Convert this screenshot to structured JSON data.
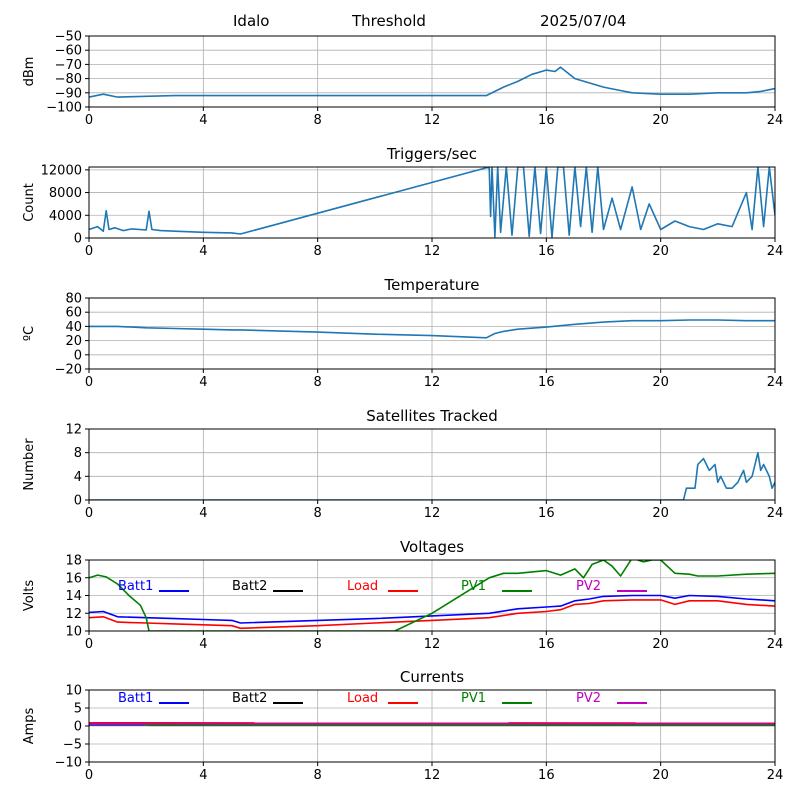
{
  "header": {
    "station": "Idalo",
    "mode": "Threshold",
    "date": "2025/07/04"
  },
  "x_ticks": [
    0,
    4,
    8,
    12,
    16,
    20,
    24
  ],
  "chart_data": [
    {
      "id": "threshold",
      "type": "line",
      "title": "",
      "ylabel": "dBm",
      "xlim": [
        0,
        24
      ],
      "ylim": [
        -100,
        -50
      ],
      "yticks": [
        -100,
        -90,
        -80,
        -70,
        -60,
        -50
      ],
      "yticks_text": [
        "−100",
        "−90",
        "−80",
        "−70",
        "−60",
        "−50"
      ],
      "grid": true,
      "series": [
        {
          "color": "#1f77b4",
          "x": [
            0,
            0.5,
            1,
            2,
            3,
            5,
            6,
            8,
            10,
            13.9,
            14.2,
            14.5,
            15,
            15.5,
            16,
            16.3,
            16.5,
            17,
            17.5,
            18,
            18.5,
            19,
            20,
            21,
            22,
            23,
            23.5,
            24
          ],
          "y": [
            -93,
            -91,
            -93,
            -92.5,
            -92,
            -92,
            -92,
            -92,
            -92,
            -92,
            -89,
            -86,
            -82,
            -77,
            -74,
            -75,
            -72,
            -80,
            -83,
            -86,
            -88,
            -90,
            -91,
            -91,
            -90,
            -90,
            -89,
            -87
          ]
        }
      ]
    },
    {
      "id": "triggers",
      "type": "line",
      "title": "Triggers/sec",
      "ylabel": "Count",
      "xlim": [
        0,
        24
      ],
      "ylim": [
        0,
        12500
      ],
      "yticks": [
        0,
        4000,
        8000,
        12000
      ],
      "yticks_text": [
        "0",
        "4000",
        "8000",
        "12000"
      ],
      "grid": true,
      "series": [
        {
          "color": "#1f77b4",
          "x": [
            0,
            0.3,
            0.5,
            0.6,
            0.7,
            0.9,
            1.2,
            1.5,
            2.0,
            2.1,
            2.2,
            2.5,
            3,
            4,
            5,
            5.3,
            14,
            14.05,
            14.1,
            14.2,
            14.3,
            14.4,
            14.6,
            14.8,
            15,
            15.2,
            15.4,
            15.6,
            15.8,
            16,
            16.2,
            16.4,
            16.6,
            16.8,
            17,
            17.2,
            17.4,
            17.6,
            17.8,
            18,
            18.3,
            18.6,
            19,
            19.3,
            19.6,
            20,
            20.5,
            21,
            21.5,
            22,
            22.5,
            23,
            23.2,
            23.4,
            23.6,
            23.8,
            24
          ],
          "y": [
            1500,
            2000,
            1200,
            4800,
            1500,
            1800,
            1300,
            1600,
            1400,
            4700,
            1500,
            1300,
            1200,
            1000,
            900,
            700,
            12500,
            3800,
            12500,
            200,
            12500,
            1000,
            12500,
            500,
            12500,
            12500,
            300,
            12500,
            800,
            12500,
            100,
            12500,
            12500,
            500,
            12500,
            2000,
            12500,
            1000,
            12500,
            1500,
            7000,
            1500,
            9000,
            1500,
            6000,
            1500,
            3000,
            2000,
            1500,
            2500,
            2000,
            8000,
            1500,
            12500,
            2000,
            12500,
            4000
          ]
        }
      ]
    },
    {
      "id": "temperature",
      "type": "line",
      "title": "Temperature",
      "ylabel": "ºC",
      "xlim": [
        0,
        24
      ],
      "ylim": [
        -20,
        80
      ],
      "yticks": [
        -20,
        0,
        20,
        40,
        60,
        80
      ],
      "yticks_text": [
        "−20",
        "0",
        "20",
        "40",
        "60",
        "80"
      ],
      "grid": true,
      "series": [
        {
          "color": "#1f77b4",
          "x": [
            0,
            1,
            2,
            3,
            4,
            5,
            5.3,
            8,
            10,
            12,
            13.9,
            14.2,
            14.5,
            15,
            16,
            17,
            18,
            19,
            20,
            21,
            22,
            23,
            24
          ],
          "y": [
            40,
            40,
            38,
            37,
            36,
            35,
            35,
            32,
            29,
            27,
            24,
            30,
            33,
            36,
            39,
            43,
            46,
            48,
            48,
            49,
            49,
            48,
            48
          ]
        }
      ]
    },
    {
      "id": "satellites",
      "type": "line",
      "title": "Satellites Tracked",
      "ylabel": "Number",
      "xlim": [
        0,
        24
      ],
      "ylim": [
        0,
        12
      ],
      "yticks": [
        0,
        4,
        8,
        12
      ],
      "yticks_text": [
        "0",
        "4",
        "8",
        "12"
      ],
      "grid": true,
      "series": [
        {
          "color": "#1f77b4",
          "x": [
            0,
            20.8,
            20.9,
            21.2,
            21.3,
            21.5,
            21.7,
            21.9,
            22,
            22.1,
            22.3,
            22.5,
            22.7,
            22.9,
            23,
            23.2,
            23.4,
            23.5,
            23.6,
            23.8,
            23.9,
            24
          ],
          "y": [
            0,
            0,
            2,
            2,
            6,
            7,
            5,
            6,
            3,
            4,
            2,
            2,
            3,
            5,
            3,
            4,
            8,
            5,
            6,
            4,
            2,
            3
          ]
        }
      ]
    },
    {
      "id": "voltages",
      "type": "line",
      "title": "Voltages",
      "ylabel": "Volts",
      "xlim": [
        0,
        24
      ],
      "ylim": [
        10,
        18
      ],
      "yticks": [
        10,
        12,
        14,
        16,
        18
      ],
      "yticks_text": [
        "10",
        "12",
        "14",
        "16",
        "18"
      ],
      "grid": true,
      "legend_placement": "top",
      "series": [
        {
          "name": "Batt1",
          "color": "#0000ff",
          "x": [
            0,
            0.5,
            1,
            2,
            3,
            4,
            5,
            5.3,
            8,
            10,
            12,
            14,
            15,
            16,
            16.5,
            17,
            17.5,
            18,
            19,
            20,
            20.5,
            21,
            22,
            23,
            24
          ],
          "y": [
            12.1,
            12.2,
            11.6,
            11.5,
            11.4,
            11.3,
            11.2,
            10.9,
            11.2,
            11.4,
            11.7,
            12.0,
            12.5,
            12.7,
            12.8,
            13.4,
            13.6,
            13.9,
            14.0,
            14.0,
            13.7,
            14.0,
            13.9,
            13.6,
            13.4
          ]
        },
        {
          "name": "Batt2",
          "color": "#000000",
          "x": [],
          "y": []
        },
        {
          "name": "Load",
          "color": "#ff0000",
          "x": [
            0,
            0.5,
            1,
            2,
            3,
            4,
            5,
            5.3,
            8,
            10,
            12,
            14,
            15,
            16,
            16.5,
            17,
            17.5,
            18,
            19,
            20,
            20.5,
            21,
            22,
            23,
            24
          ],
          "y": [
            11.5,
            11.6,
            11.0,
            10.9,
            10.8,
            10.7,
            10.6,
            10.3,
            10.6,
            10.9,
            11.2,
            11.5,
            12.0,
            12.2,
            12.4,
            13.0,
            13.1,
            13.4,
            13.5,
            13.5,
            13.0,
            13.4,
            13.4,
            13.0,
            12.8
          ]
        },
        {
          "name": "PV1",
          "color": "#008000",
          "x": [
            0,
            0.3,
            0.6,
            1,
            1.4,
            1.8,
            2.0,
            2.1,
            10.7,
            12,
            14,
            14.5,
            15,
            16,
            16.5,
            17,
            17.3,
            17.6,
            18,
            18.3,
            18.6,
            19,
            19.4,
            19.7,
            20,
            20.5,
            21,
            21.3,
            22,
            23,
            24
          ],
          "y": [
            16.0,
            16.3,
            16.1,
            15.3,
            14.0,
            12.9,
            11.5,
            10,
            10,
            12,
            16.0,
            16.5,
            16.5,
            16.8,
            16.3,
            17.0,
            16.0,
            17.5,
            18,
            17.3,
            16.2,
            18.2,
            17.8,
            18.0,
            18,
            16.5,
            16.4,
            16.2,
            16.2,
            16.4,
            16.5
          ]
        },
        {
          "name": "PV2",
          "color": "#bf00bf",
          "x": [],
          "y": []
        }
      ]
    },
    {
      "id": "currents",
      "type": "line",
      "title": "Currents",
      "ylabel": "Amps",
      "xlim": [
        0,
        24
      ],
      "ylim": [
        -10,
        10
      ],
      "yticks": [
        -10,
        -5,
        0,
        5,
        10
      ],
      "yticks_text": [
        "−10",
        "−5",
        "0",
        "5",
        "10"
      ],
      "grid": true,
      "legend_placement": "top",
      "series": [
        {
          "name": "Batt1",
          "color": "#0000ff",
          "x": [
            0,
            24
          ],
          "y": [
            0.3,
            0.3
          ]
        },
        {
          "name": "Batt2",
          "color": "#000000",
          "x": [],
          "y": []
        },
        {
          "name": "Load",
          "color": "#ff0000",
          "x": [
            0,
            24
          ],
          "y": [
            0.9,
            0.8
          ]
        },
        {
          "name": "PV1",
          "color": "#008000",
          "x": [
            0,
            1.9,
            2.1,
            24
          ],
          "y": [
            0.5,
            0.5,
            0.2,
            0.2
          ]
        },
        {
          "name": "PV2",
          "color": "#bf00bf",
          "x": [
            0,
            24
          ],
          "y": [
            0.6,
            0.6
          ]
        }
      ]
    }
  ]
}
